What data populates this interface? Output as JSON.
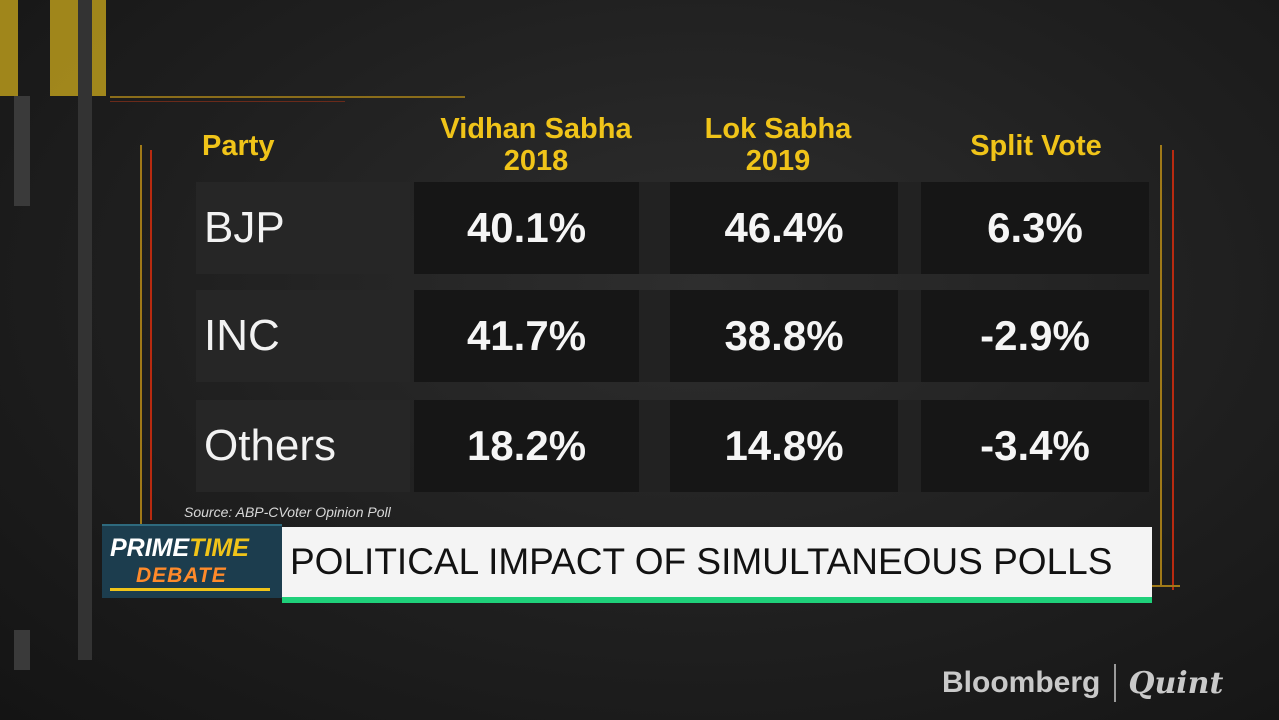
{
  "chart_data": {
    "type": "table",
    "columns": [
      "Party",
      "Vidhan Sabha\n2018",
      "Lok Sabha\n2019",
      "Split Vote"
    ],
    "column_labels": {
      "party": "Party",
      "vidhan_line1": "Vidhan Sabha",
      "vidhan_line2": "2018",
      "lok_line1": "Lok Sabha",
      "lok_line2": "2019",
      "split": "Split Vote"
    },
    "rows": [
      {
        "party": "BJP",
        "vidhan_sabha_2018": "40.1%",
        "lok_sabha_2019": "46.4%",
        "split_vote": "6.3%"
      },
      {
        "party": "INC",
        "vidhan_sabha_2018": "41.7%",
        "lok_sabha_2019": "38.8%",
        "split_vote": "-2.9%"
      },
      {
        "party": "Others",
        "vidhan_sabha_2018": "18.2%",
        "lok_sabha_2019": "14.8%",
        "split_vote": "-3.4%"
      }
    ],
    "source": "Source: ABP-CVoter Opinion Poll"
  },
  "lower_third": {
    "show_prime": "PRIME",
    "show_time": "TIME",
    "show_debate": "DEBATE",
    "headline": "POLITICAL IMPACT OF SIMULTANEOUS POLLS"
  },
  "branding": {
    "bloomberg": "Bloomberg",
    "quint": "Quint"
  },
  "colors": {
    "header_yellow": "#f0c419",
    "accent_green": "#1fd07a",
    "logo_bg": "#1c3d4e",
    "debate_orange": "#ff8a2a"
  }
}
